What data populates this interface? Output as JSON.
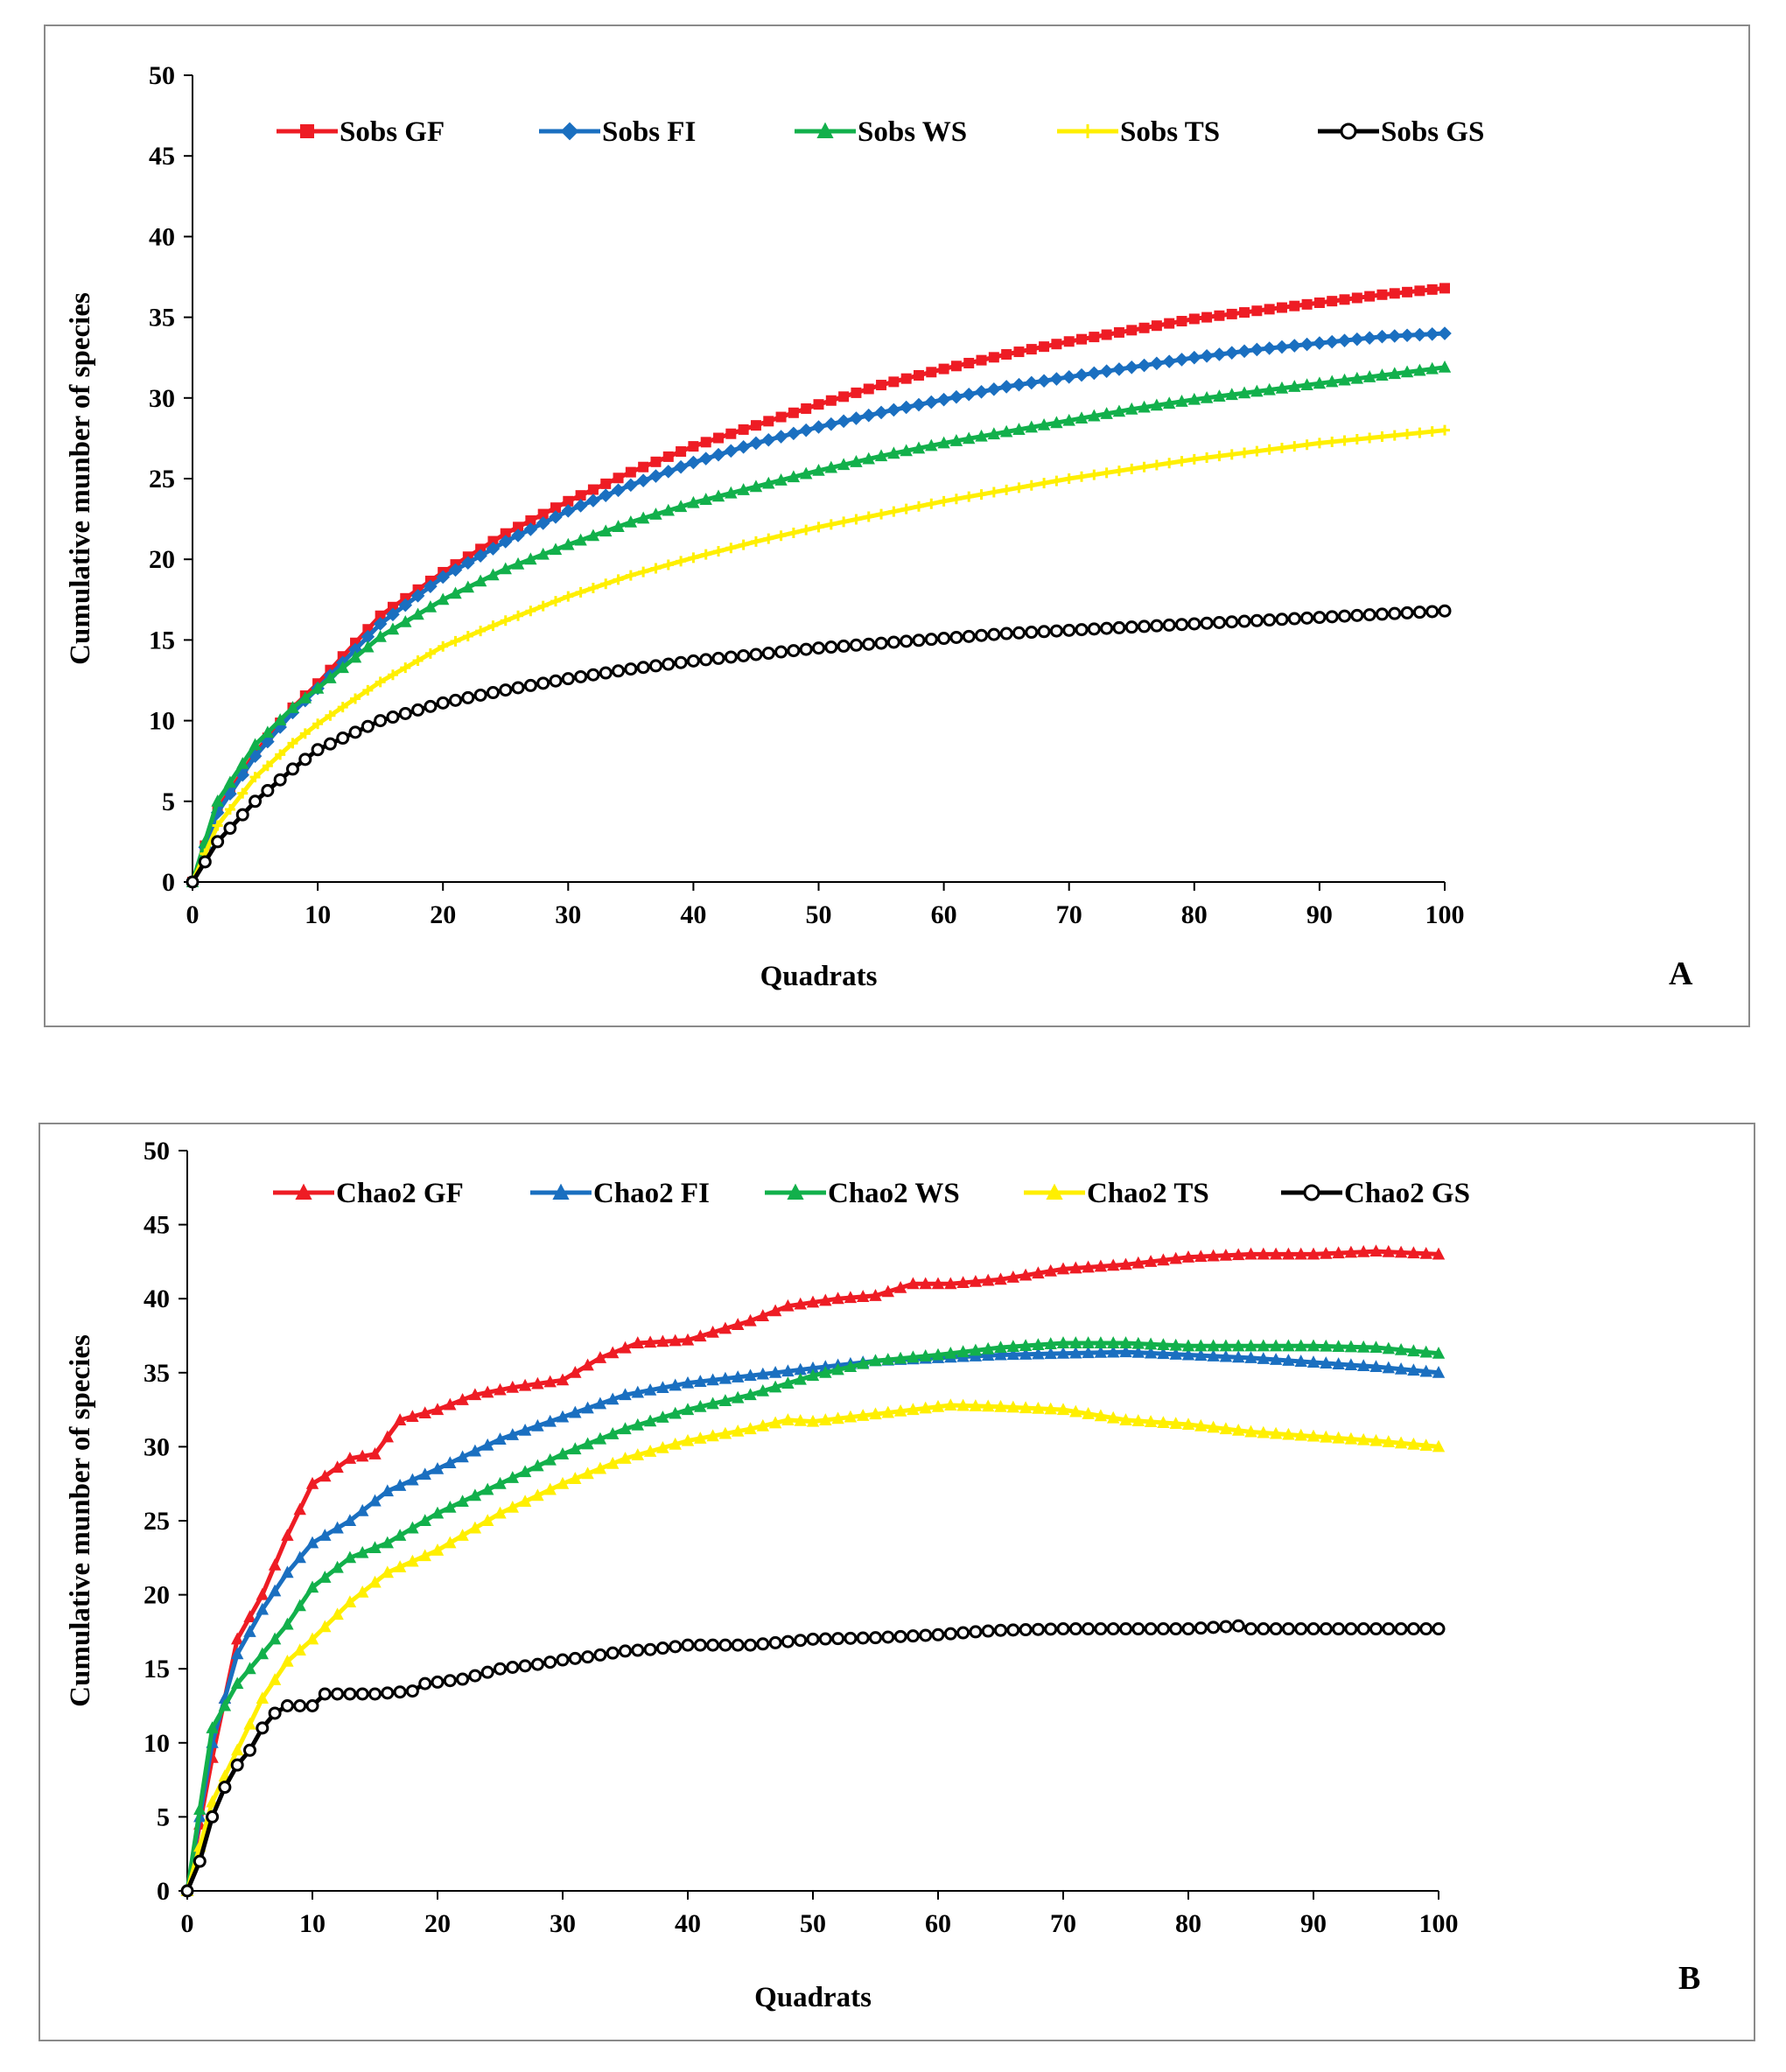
{
  "chart_data": [
    {
      "panel": "A",
      "type": "line",
      "xlabel": "Quadrats",
      "ylabel": "Cumulative munber of species",
      "xlim": [
        0,
        100
      ],
      "ylim": [
        0,
        50
      ],
      "xticks": [
        "0",
        "10",
        "20",
        "30",
        "40",
        "50",
        "60",
        "70",
        "80",
        "90",
        "100"
      ],
      "yticks": [
        "0",
        "5",
        "10",
        "15",
        "20",
        "25",
        "30",
        "35",
        "40",
        "45",
        "50"
      ],
      "legend_position": "top",
      "series": [
        {
          "name": "Sobs GF",
          "color": "#ee1c24",
          "marker": "square",
          "x": [
            0,
            2,
            5,
            8,
            10,
            15,
            20,
            25,
            30,
            35,
            40,
            45,
            50,
            55,
            60,
            65,
            70,
            75,
            80,
            85,
            90,
            95,
            100
          ],
          "values": [
            0,
            4.5,
            8.0,
            10.8,
            12.3,
            16.5,
            19.2,
            21.6,
            23.6,
            25.4,
            27.0,
            28.3,
            29.6,
            30.8,
            31.8,
            32.7,
            33.5,
            34.2,
            34.9,
            35.4,
            35.9,
            36.4,
            36.8
          ]
        },
        {
          "name": "Sobs FI",
          "color": "#1a6fc0",
          "marker": "diamond",
          "x": [
            0,
            2,
            5,
            8,
            10,
            15,
            20,
            25,
            30,
            35,
            40,
            45,
            50,
            55,
            60,
            65,
            70,
            75,
            80,
            85,
            90,
            95,
            100
          ],
          "values": [
            0,
            4.3,
            7.8,
            10.5,
            12.0,
            16.0,
            18.9,
            21.1,
            23.0,
            24.6,
            26.0,
            27.2,
            28.2,
            29.1,
            29.9,
            30.7,
            31.3,
            31.9,
            32.5,
            33.0,
            33.4,
            33.8,
            34.0
          ]
        },
        {
          "name": "Sobs WS",
          "color": "#12b04b",
          "marker": "triangle",
          "x": [
            0,
            2,
            5,
            8,
            10,
            15,
            20,
            25,
            30,
            35,
            40,
            45,
            50,
            55,
            60,
            65,
            70,
            75,
            80,
            85,
            90,
            95,
            100
          ],
          "values": [
            0,
            5.0,
            8.5,
            10.8,
            12.0,
            15.2,
            17.5,
            19.4,
            20.9,
            22.3,
            23.5,
            24.5,
            25.5,
            26.4,
            27.2,
            27.9,
            28.6,
            29.3,
            29.9,
            30.4,
            30.9,
            31.4,
            31.9
          ]
        },
        {
          "name": "Sobs TS",
          "color": "#ffef00",
          "marker": "cross",
          "x": [
            0,
            2,
            5,
            8,
            10,
            15,
            20,
            25,
            30,
            35,
            40,
            45,
            50,
            55,
            60,
            65,
            70,
            75,
            80,
            85,
            90,
            95,
            100
          ],
          "values": [
            0,
            3.5,
            6.5,
            8.6,
            9.8,
            12.4,
            14.6,
            16.2,
            17.7,
            19.0,
            20.1,
            21.1,
            22.0,
            22.8,
            23.6,
            24.3,
            25.0,
            25.6,
            26.2,
            26.7,
            27.2,
            27.6,
            28.0
          ]
        },
        {
          "name": "Sobs GS",
          "color": "#000000",
          "marker": "circle",
          "x": [
            0,
            2,
            5,
            8,
            10,
            15,
            20,
            25,
            30,
            35,
            40,
            45,
            50,
            55,
            60,
            65,
            70,
            75,
            80,
            85,
            90,
            95,
            100
          ],
          "values": [
            0,
            2.5,
            5.0,
            7.0,
            8.2,
            10.0,
            11.1,
            11.9,
            12.6,
            13.2,
            13.7,
            14.1,
            14.5,
            14.8,
            15.1,
            15.4,
            15.6,
            15.8,
            16.0,
            16.2,
            16.4,
            16.6,
            16.8
          ]
        }
      ]
    },
    {
      "panel": "B",
      "type": "line",
      "xlabel": "Quadrats",
      "ylabel": "Cumulative munber of species",
      "xlim": [
        0,
        100
      ],
      "ylim": [
        0,
        50
      ],
      "xticks": [
        "0",
        "10",
        "20",
        "30",
        "40",
        "50",
        "60",
        "70",
        "80",
        "90",
        "100"
      ],
      "yticks": [
        "0",
        "5",
        "10",
        "15",
        "20",
        "25",
        "30",
        "35",
        "40",
        "45",
        "50"
      ],
      "legend_position": "top",
      "series": [
        {
          "name": "Chao2 GF",
          "color": "#ee1c24",
          "marker": "triangle",
          "x": [
            0,
            2,
            4,
            6,
            8,
            10,
            11,
            13,
            15,
            17,
            20,
            23,
            26,
            30,
            33,
            36,
            40,
            45,
            48,
            52,
            55,
            58,
            61,
            65,
            70,
            75,
            80,
            85,
            90,
            95,
            100
          ],
          "values": [
            0,
            9,
            17,
            20,
            24,
            27.5,
            28,
            29.2,
            29.5,
            31.8,
            32.5,
            33.5,
            34,
            34.5,
            36,
            37,
            37.2,
            38.5,
            39.5,
            40,
            40.2,
            41,
            41,
            41.3,
            42,
            42.3,
            42.8,
            43,
            43,
            43.2,
            43
          ]
        },
        {
          "name": "Chao2 FI",
          "color": "#1a6fc0",
          "marker": "triangle",
          "x": [
            0,
            2,
            4,
            6,
            8,
            10,
            13,
            16,
            20,
            25,
            30,
            35,
            40,
            45,
            50,
            55,
            60,
            65,
            70,
            75,
            80,
            85,
            90,
            95,
            100
          ],
          "values": [
            0,
            10,
            16,
            19,
            21.5,
            23.5,
            25,
            27,
            28.5,
            30.5,
            32,
            33.5,
            34.3,
            34.8,
            35.3,
            35.8,
            36,
            36.2,
            36.3,
            36.4,
            36.2,
            36,
            35.7,
            35.4,
            35
          ]
        },
        {
          "name": "Chao2 WS",
          "color": "#12b04b",
          "marker": "triangle",
          "x": [
            0,
            2,
            4,
            6,
            8,
            10,
            13,
            16,
            20,
            25,
            30,
            35,
            40,
            45,
            50,
            55,
            60,
            65,
            70,
            75,
            80,
            85,
            90,
            95,
            100
          ],
          "values": [
            0,
            11,
            14,
            16,
            18,
            20.5,
            22.5,
            23.5,
            25.5,
            27.5,
            29.5,
            31.2,
            32.5,
            33.5,
            34.8,
            35.8,
            36.2,
            36.7,
            37,
            37,
            36.8,
            36.8,
            36.8,
            36.7,
            36.3
          ]
        },
        {
          "name": "Chao2 TS",
          "color": "#ffef00",
          "marker": "triangle",
          "x": [
            0,
            2,
            4,
            6,
            8,
            10,
            13,
            16,
            20,
            25,
            30,
            35,
            40,
            45,
            48,
            50,
            55,
            58,
            61,
            65,
            70,
            75,
            80,
            85,
            90,
            95,
            100
          ],
          "values": [
            0,
            6,
            9.5,
            13,
            15.5,
            17,
            19.5,
            21.5,
            23,
            25.5,
            27.5,
            29.2,
            30.4,
            31.2,
            31.8,
            31.7,
            32.2,
            32.5,
            32.8,
            32.7,
            32.5,
            31.8,
            31.5,
            31,
            30.7,
            30.4,
            30
          ]
        },
        {
          "name": "Chao2 GS",
          "color": "#000000",
          "marker": "circle",
          "x": [
            0,
            1,
            2,
            3,
            4,
            5,
            6,
            7,
            8,
            10,
            11,
            13,
            15,
            18,
            19,
            22,
            25,
            28,
            30,
            32,
            35,
            37,
            38,
            40,
            45,
            50,
            55,
            60,
            63,
            65,
            70,
            75,
            80,
            84,
            85,
            90,
            95,
            100
          ],
          "values": [
            0,
            2,
            5,
            7,
            8.5,
            9.5,
            11,
            12,
            12.5,
            12.5,
            13.3,
            13.3,
            13.3,
            13.5,
            14,
            14.3,
            15,
            15.3,
            15.6,
            15.8,
            16.2,
            16.3,
            16.4,
            16.6,
            16.6,
            17,
            17.1,
            17.3,
            17.5,
            17.6,
            17.7,
            17.7,
            17.7,
            17.9,
            17.7,
            17.7,
            17.7,
            17.7
          ]
        }
      ]
    }
  ],
  "panels": {
    "a": {
      "letter": "A"
    },
    "b": {
      "letter": "B"
    }
  }
}
